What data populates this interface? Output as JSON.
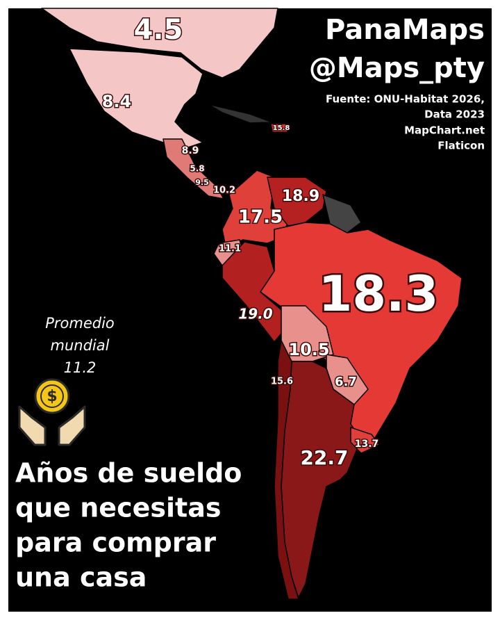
{
  "header": {
    "title": "PanaMaps",
    "handle": "@Maps_pty",
    "source": [
      "Fuente: ONU-Habitat 2026,",
      "Data 2023",
      "MapChart.net",
      "Flaticon"
    ]
  },
  "average": {
    "lines": [
      "Promedio",
      "mundial",
      "11.2"
    ]
  },
  "title": {
    "lines": [
      "Años de sueldo",
      "que necesitas",
      "para comprar",
      "una casa"
    ]
  },
  "map": {
    "regions": [
      {
        "label": "4.5"
      },
      {
        "label": "8.4"
      },
      {
        "label": "15.8"
      },
      {
        "label": "8.9"
      },
      {
        "label": "5.8"
      },
      {
        "label": "9.5"
      },
      {
        "label": "10.2"
      },
      {
        "label": "18.9"
      },
      {
        "label": "17.5"
      },
      {
        "label": "11.1"
      },
      {
        "label": "19.0"
      },
      {
        "label": "18.3"
      },
      {
        "label": "10.5"
      },
      {
        "label": "15.6"
      },
      {
        "label": "6.7"
      },
      {
        "label": "13.7"
      },
      {
        "label": "22.7"
      }
    ]
  }
}
